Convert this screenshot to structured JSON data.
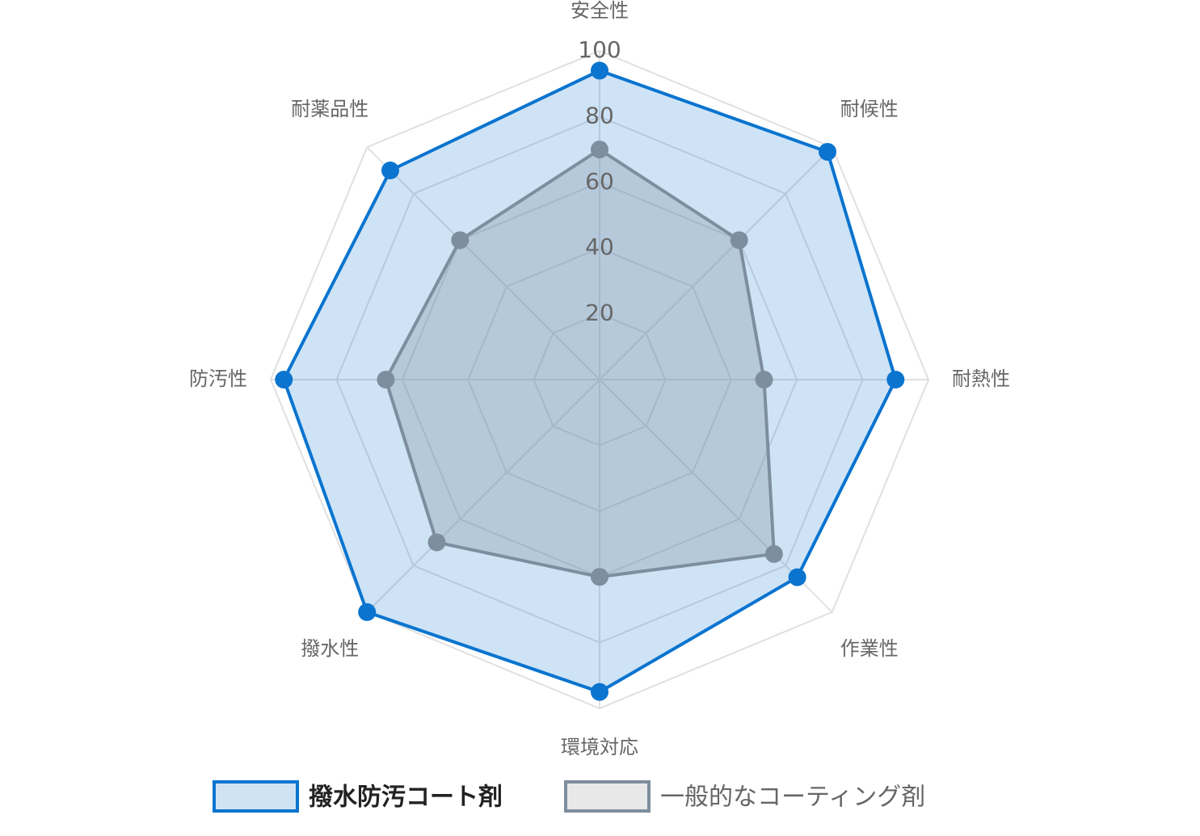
{
  "chart_data": {
    "type": "radar",
    "categories": [
      "安全性",
      "耐候性",
      "耐熱性",
      "作業性",
      "環境対応",
      "撥水性",
      "防汚性",
      "耐薬品性"
    ],
    "series": [
      {
        "name": "撥水防汚コート剤",
        "color": "#0a74cf",
        "values": [
          94,
          98,
          90,
          85,
          95,
          100,
          96,
          90
        ]
      },
      {
        "name": "一般的なコーティング剤",
        "color": "#7d8e9e",
        "values": [
          70,
          60,
          50,
          75,
          60,
          70,
          65,
          60
        ]
      }
    ],
    "rlim": [
      0,
      100
    ],
    "rticks": [
      20,
      40,
      60,
      80,
      100
    ],
    "grid": true,
    "legend": "bottom"
  }
}
